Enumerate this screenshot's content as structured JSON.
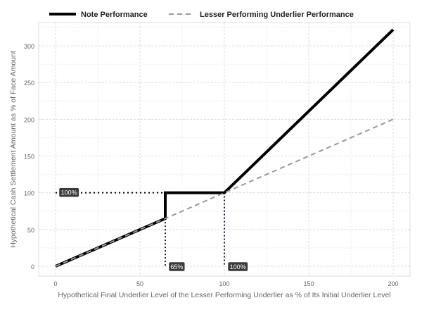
{
  "chart_data": {
    "type": "line",
    "xlabel": "Hypothetical Final Underlier Level of the Lesser Performing Underlier as % of Its Initial Underlier Level",
    "ylabel": "Hypothetical Cash Settlement Amount as % of Face Amount",
    "xlim": [
      -10,
      210
    ],
    "ylim": [
      -10,
      330
    ],
    "xticks": [
      0,
      50,
      100,
      150,
      200
    ],
    "yticks": [
      0,
      50,
      100,
      150,
      200,
      250,
      300
    ],
    "grid": true,
    "legend_position": "top-left",
    "series": [
      {
        "name": "Note Performance",
        "style": "solid",
        "color": "#000000",
        "x": [
          0,
          65,
          65,
          100,
          200
        ],
        "y": [
          0,
          65,
          100,
          100,
          322
        ]
      },
      {
        "name": "Lesser Performing Underlier Performance",
        "style": "dashed",
        "color": "#999999",
        "x": [
          0,
          200
        ],
        "y": [
          0,
          200
        ]
      }
    ],
    "annotations": [
      {
        "label": "100%",
        "x": 0,
        "y": 100,
        "axis": "y",
        "connect_from_x": 65
      },
      {
        "label": "65%",
        "x": 65,
        "y": 0,
        "axis": "x",
        "connect_from_y": 65
      },
      {
        "label": "100%",
        "x": 100,
        "y": 0,
        "axis": "x",
        "connect_from_y": 100
      }
    ]
  }
}
